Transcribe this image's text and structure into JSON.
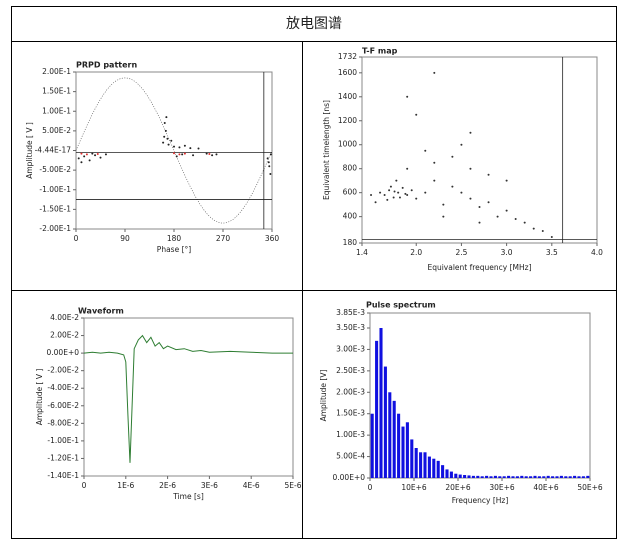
{
  "title": "放电图谱",
  "chart_data": [
    {
      "type": "scatter",
      "title": "PRPD pattern",
      "x_label": "Phase [°]",
      "y_label": "Amplitude [ V ]",
      "xlim": [
        0,
        360
      ],
      "ylim": [
        -0.2,
        0.2
      ],
      "xticks": [
        0,
        90,
        180,
        270,
        360
      ],
      "yticks": [
        {
          "value": 0.2,
          "label": "2.00E-1"
        },
        {
          "value": 0.15,
          "label": "1.50E-1"
        },
        {
          "value": 0.1,
          "label": "1.00E-1"
        },
        {
          "value": 0.05,
          "label": "5.00E-2"
        },
        {
          "value": -4.44e-17,
          "label": "-4.44E-17"
        },
        {
          "value": -0.05,
          "label": "-5.00E-2"
        },
        {
          "value": -0.1,
          "label": "-1.00E-1"
        },
        {
          "value": -0.15,
          "label": "-1.50E-1"
        },
        {
          "value": -0.2,
          "label": "-2.00E-1"
        }
      ],
      "sine_amplitude": 0.185,
      "hlines": [
        -0.005,
        -0.125
      ],
      "vlines": [
        345
      ],
      "series": [
        {
          "color": "#222222",
          "x": [
            5,
            15,
            25,
            35,
            45,
            55,
            10,
            30,
            160,
            162,
            165,
            168,
            170,
            175,
            180,
            190,
            200,
            210,
            225,
            163,
            166,
            185,
            195,
            215,
            240,
            250,
            258,
            352,
            355,
            357,
            354,
            358
          ],
          "values": [
            -0.02,
            -0.015,
            -0.025,
            -0.012,
            -0.018,
            -0.01,
            -0.03,
            -0.008,
            0.02,
            0.035,
            0.05,
            0.03,
            0.015,
            0.025,
            0.01,
            0.008,
            0.012,
            0.006,
            0.005,
            0.07,
            0.085,
            -0.015,
            -0.01,
            -0.012,
            -0.008,
            -0.012,
            -0.01,
            -0.02,
            -0.04,
            -0.06,
            -0.03,
            -0.01
          ]
        },
        {
          "color": "#e03030",
          "x": [
            10,
            20,
            40,
            180,
            190,
            200,
            245
          ],
          "values": [
            -0.008,
            -0.01,
            -0.009,
            -0.007,
            -0.01,
            -0.008,
            -0.009
          ]
        }
      ]
    },
    {
      "type": "scatter",
      "title": "T-F map",
      "x_label": "Equivalent frequency [MHz]",
      "y_label": "Equivalent timelength [ns]",
      "xlim": [
        1.4,
        4.0
      ],
      "ylim": [
        180,
        1732
      ],
      "xticks": [
        1.4,
        {
          "value": 2,
          "label": "2.0"
        },
        2.5,
        {
          "value": 3,
          "label": "3.0"
        },
        3.5,
        {
          "value": 4,
          "label": "4.0"
        }
      ],
      "yticks": [
        180,
        400,
        600,
        800,
        1000,
        1200,
        1400,
        1600,
        1732
      ],
      "hlines": [
        210
      ],
      "vlines": [
        3.62
      ],
      "series": [
        {
          "color": "#333333",
          "x": [
            1.6,
            1.65,
            1.7,
            1.75,
            1.8,
            1.85,
            1.9,
            1.72,
            1.68,
            1.78,
            1.95,
            2.0,
            2.1,
            2.2,
            2.3,
            2.4,
            2.5,
            2.6,
            2.7,
            2.8,
            2.9,
            3.0,
            3.1,
            3.2,
            3.3,
            3.4,
            2.2,
            2.4,
            2.6,
            2.8,
            3.0,
            1.9,
            2.1,
            2.5,
            1.55,
            1.5,
            2.3,
            2.7,
            3.5,
            2.0,
            2.2,
            1.9,
            2.6,
            1.82,
            1.76,
            1.88
          ],
          "values": [
            600,
            580,
            620,
            560,
            600,
            640,
            580,
            650,
            540,
            700,
            620,
            550,
            600,
            700,
            500,
            650,
            600,
            550,
            480,
            520,
            400,
            450,
            380,
            350,
            300,
            280,
            850,
            900,
            800,
            750,
            700,
            800,
            950,
            1000,
            520,
            580,
            400,
            350,
            230,
            1250,
            1600,
            1400,
            1100,
            560,
            610,
            590
          ]
        }
      ]
    },
    {
      "type": "line",
      "title": "Waveform",
      "x_label": "Time [s]",
      "y_label": "Amplitude [ V ]",
      "xlim": [
        0,
        5e-06
      ],
      "ylim": [
        -0.14,
        0.04
      ],
      "xticks": [
        0,
        {
          "value": 1e-06,
          "label": "1E-6"
        },
        {
          "value": 2e-06,
          "label": "2E-6"
        },
        {
          "value": 3e-06,
          "label": "3E-6"
        },
        {
          "value": 4e-06,
          "label": "4E-6"
        },
        {
          "value": 5e-06,
          "label": "5E-6"
        }
      ],
      "yticks": [
        {
          "value": 0.04,
          "label": "4.00E-2"
        },
        {
          "value": 0.02,
          "label": "2.00E-2"
        },
        {
          "value": 0,
          "label": "0.00E+0"
        },
        {
          "value": -0.02,
          "label": "-2.00E-2"
        },
        {
          "value": -0.04,
          "label": "-4.00E-2"
        },
        {
          "value": -0.06,
          "label": "-6.00E-2"
        },
        {
          "value": -0.08,
          "label": "-8.00E-2"
        },
        {
          "value": -0.1,
          "label": "-1.00E-1"
        },
        {
          "value": -0.12,
          "label": "-1.20E-1"
        },
        {
          "value": -0.14,
          "label": "-1.40E-1"
        }
      ],
      "series": [
        {
          "color": "#2e7d32",
          "x": [
            0,
            2e-07,
            4e-07,
            6e-07,
            8e-07,
            9.5e-07,
            1e-06,
            1.05e-06,
            1.1e-06,
            1.15e-06,
            1.2e-06,
            1.3e-06,
            1.4e-06,
            1.5e-06,
            1.6e-06,
            1.7e-06,
            1.8e-06,
            1.9e-06,
            2e-06,
            2.2e-06,
            2.4e-06,
            2.6e-06,
            2.8e-06,
            3e-06,
            3.5e-06,
            4e-06,
            4.5e-06,
            5e-06
          ],
          "values": [
            0,
            0.001,
            0,
            0.001,
            0,
            -0.002,
            -0.01,
            -0.07,
            -0.125,
            -0.06,
            0.005,
            0.015,
            0.02,
            0.012,
            0.018,
            0.008,
            0.012,
            0.005,
            0.008,
            0.004,
            0.005,
            0.002,
            0.003,
            0.001,
            0.002,
            0.001,
            0,
            0
          ]
        }
      ]
    },
    {
      "type": "bar",
      "title": "Pulse spectrum",
      "x_label": "Frequency [Hz]",
      "y_label": "Amplitude [V]",
      "xlim": [
        0,
        50000000.0
      ],
      "ylim": [
        0,
        0.00385
      ],
      "xticks": [
        0,
        {
          "value": 10000000.0,
          "label": "10E+6"
        },
        {
          "value": 20000000.0,
          "label": "20E+6"
        },
        {
          "value": 30000000.0,
          "label": "30E+6"
        },
        {
          "value": 40000000.0,
          "label": "40E+6"
        },
        {
          "value": 50000000.0,
          "label": "50E+6"
        }
      ],
      "yticks": [
        {
          "value": 0.00385,
          "label": "3.85E-3"
        },
        {
          "value": 0.0035,
          "label": "3.50E-3"
        },
        {
          "value": 0.003,
          "label": "3.00E-3"
        },
        {
          "value": 0.0025,
          "label": "2.50E-3"
        },
        {
          "value": 0.002,
          "label": "2.00E-3"
        },
        {
          "value": 0.0015,
          "label": "1.50E-3"
        },
        {
          "value": 0.001,
          "label": "1.00E-3"
        },
        {
          "value": 0.0005,
          "label": "5.00E-4"
        },
        {
          "value": 0,
          "label": "0.00E+0"
        }
      ],
      "series": [
        {
          "color": "#1010e0",
          "x": [
            500000.0,
            1500000.0,
            2500000.0,
            3500000.0,
            4500000.0,
            5500000.0,
            6500000.0,
            7500000.0,
            8500000.0,
            9500000.0,
            10500000.0,
            11500000.0,
            12500000.0,
            13500000.0,
            14500000.0,
            15500000.0,
            16500000.0,
            17500000.0,
            18500000.0,
            19500000.0,
            20500000.0,
            21500000.0,
            22500000.0,
            23500000.0,
            24500000.0,
            25500000.0,
            26500000.0,
            27500000.0,
            28500000.0,
            29500000.0,
            30500000.0,
            31500000.0,
            32500000.0,
            33500000.0,
            34500000.0,
            35500000.0,
            36500000.0,
            37500000.0,
            38500000.0,
            39500000.0,
            40500000.0,
            41500000.0,
            42500000.0,
            43500000.0,
            44500000.0,
            45500000.0,
            46500000.0,
            47500000.0,
            48500000.0,
            49500000.0
          ],
          "values": [
            0.0015,
            0.0032,
            0.0035,
            0.0026,
            0.002,
            0.0018,
            0.0015,
            0.0012,
            0.0013,
            0.0009,
            0.0007,
            0.0006,
            0.0006,
            0.0005,
            0.00045,
            0.0004,
            0.0003,
            0.0002,
            0.00015,
            0.0001,
            8e-05,
            7e-05,
            6e-05,
            5e-05,
            5e-05,
            4e-05,
            5e-05,
            4e-05,
            5e-05,
            4e-05,
            4e-05,
            5e-05,
            4e-05,
            4e-05,
            5e-05,
            4e-05,
            4e-05,
            5e-05,
            4e-05,
            4e-05,
            5e-05,
            4e-05,
            4e-05,
            5e-05,
            4e-05,
            4e-05,
            5e-05,
            4e-05,
            4e-05,
            5e-05
          ]
        }
      ]
    }
  ]
}
